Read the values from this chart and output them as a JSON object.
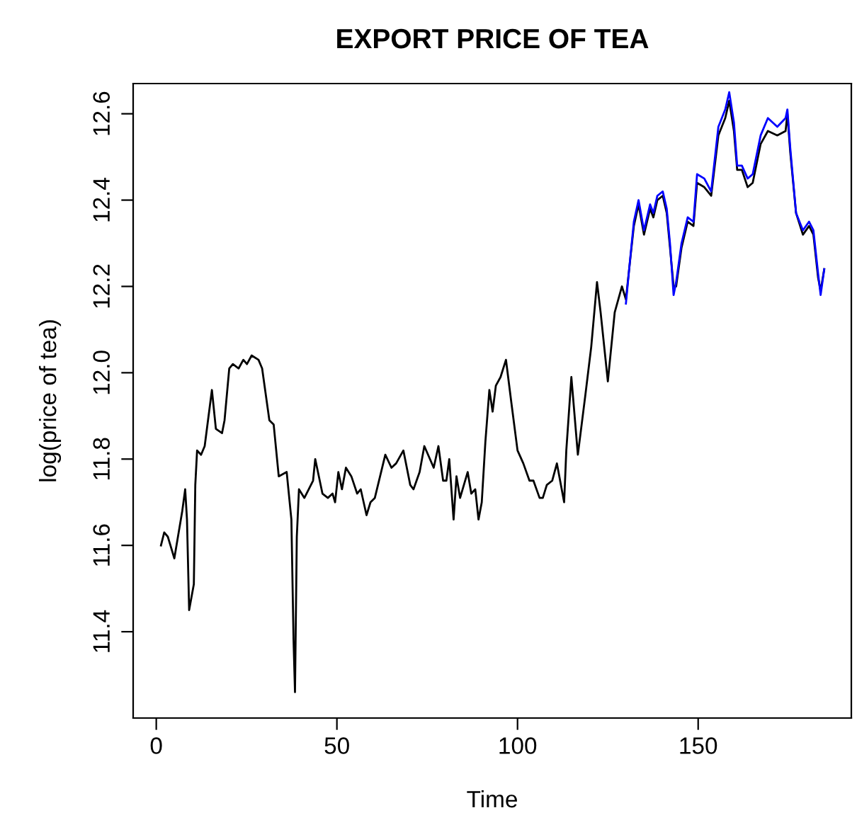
{
  "chart_data": {
    "type": "line",
    "title": "EXPORT PRICE OF TEA",
    "xlabel": "Time",
    "ylabel": "log(price of tea)",
    "xlim": [
      -6.4,
      192.4
    ],
    "ylim": [
      11.2,
      12.67
    ],
    "xticks": [
      0,
      50,
      100,
      150
    ],
    "yticks": [
      11.4,
      11.6,
      11.8,
      {
        "value": 12.0,
        "label": "12.0"
      },
      12.2,
      12.4,
      12.6
    ],
    "grid": false,
    "legend": false,
    "marker": "none",
    "line_style": "solid",
    "series": [
      {
        "color": "#000000",
        "x": [
          1.3,
          2.2,
          3.2,
          5,
          7.2,
          8,
          8.5,
          9.1,
          10.4,
          10.8,
          11.3,
          12.4,
          13.4,
          15.4,
          16.5,
          18.2,
          18.9,
          20.2,
          21.2,
          22.8,
          24.1,
          25.1,
          26.4,
          28.3,
          29.3,
          31.3,
          32.5,
          33.9,
          36.1,
          37.4,
          38,
          38.4,
          38.9,
          39.5,
          41,
          43.4,
          44,
          46,
          47.5,
          48.8,
          49.5,
          50.4,
          51.4,
          52.5,
          54,
          55.6,
          56.6,
          58.2,
          59.3,
          60.5,
          63.4,
          65.1,
          66.4,
          68.4,
          70.3,
          71.2,
          72.9,
          74.2,
          76.8,
          78.1,
          79.4,
          80.3,
          81.1,
          82.3,
          83.1,
          84.1,
          86.2,
          87.2,
          88.3,
          89.2,
          90.1,
          91.1,
          92.2,
          93.1,
          94,
          95.3,
          96.8,
          98.3,
          100,
          101.6,
          103.3,
          104.4,
          106.1,
          107,
          108.1,
          109.6,
          110.9,
          112.9,
          113.5,
          114.9,
          116.7,
          118.8,
          120.4,
          122,
          123,
          125,
          126.9,
          128.9,
          130,
          130.9,
          132.2,
          133.5,
          135,
          136.7,
          137.6,
          138.7,
          140.2,
          141.3,
          142.2,
          143.2,
          143.9,
          145.4,
          147.1,
          148.7,
          149.7,
          151.7,
          153.6,
          155.6,
          157.5,
          158.6,
          159.9,
          160.8,
          162.1,
          163.7,
          165.1,
          167.3,
          169.3,
          171.9,
          174.2,
          174.7,
          175.5,
          177.1,
          179,
          180.7,
          181.9,
          183.2,
          183.9,
          184.9
        ],
        "values": [
          11.6,
          11.63,
          11.62,
          11.57,
          11.68,
          11.73,
          11.66,
          11.45,
          11.51,
          11.74,
          11.82,
          11.81,
          11.83,
          11.96,
          11.87,
          11.86,
          11.89,
          12.01,
          12.02,
          12.01,
          12.03,
          12.02,
          12.04,
          12.03,
          12.01,
          11.89,
          11.88,
          11.76,
          11.77,
          11.66,
          11.38,
          11.26,
          11.62,
          11.73,
          11.71,
          11.75,
          11.8,
          11.72,
          11.71,
          11.72,
          11.7,
          11.77,
          11.73,
          11.78,
          11.76,
          11.72,
          11.73,
          11.67,
          11.7,
          11.71,
          11.81,
          11.78,
          11.79,
          11.82,
          11.74,
          11.73,
          11.77,
          11.83,
          11.78,
          11.83,
          11.75,
          11.75,
          11.8,
          11.66,
          11.76,
          11.71,
          11.77,
          11.72,
          11.73,
          11.66,
          11.7,
          11.84,
          11.96,
          11.91,
          11.97,
          11.99,
          12.03,
          11.93,
          11.82,
          11.79,
          11.75,
          11.75,
          11.71,
          11.71,
          11.74,
          11.75,
          11.79,
          11.7,
          11.82,
          11.99,
          11.81,
          11.95,
          12.06,
          12.21,
          12.14,
          11.98,
          12.14,
          12.2,
          12.17,
          12.24,
          12.34,
          12.39,
          12.32,
          12.38,
          12.36,
          12.4,
          12.41,
          12.37,
          12.29,
          12.2,
          12.2,
          12.29,
          12.35,
          12.34,
          12.44,
          12.43,
          12.41,
          12.55,
          12.59,
          12.63,
          12.56,
          12.47,
          12.47,
          12.43,
          12.44,
          12.53,
          12.56,
          12.55,
          12.56,
          12.6,
          12.51,
          12.37,
          12.32,
          12.34,
          12.32,
          12.22,
          12.19,
          12.24
        ]
      },
      {
        "color": "#0000ff",
        "x": [
          130,
          130.9,
          132.2,
          133.5,
          135,
          136.7,
          137.6,
          138.7,
          140.2,
          141.3,
          142.2,
          143.2,
          143.9,
          145.4,
          147.1,
          148.7,
          149.7,
          151.7,
          153.6,
          155.6,
          157.5,
          158.6,
          159.9,
          160.8,
          162.1,
          163.7,
          165.1,
          167.3,
          169.3,
          171.9,
          174.2,
          174.7,
          175.5,
          177.1,
          179,
          180.7,
          181.9,
          183.2,
          183.9,
          184.9
        ],
        "values": [
          12.16,
          12.24,
          12.35,
          12.4,
          12.33,
          12.39,
          12.37,
          12.41,
          12.42,
          12.38,
          12.3,
          12.18,
          12.21,
          12.3,
          12.36,
          12.35,
          12.46,
          12.45,
          12.42,
          12.57,
          12.61,
          12.65,
          12.58,
          12.48,
          12.48,
          12.45,
          12.46,
          12.55,
          12.59,
          12.57,
          12.59,
          12.61,
          12.52,
          12.37,
          12.33,
          12.35,
          12.33,
          12.23,
          12.18,
          12.24
        ]
      }
    ]
  }
}
